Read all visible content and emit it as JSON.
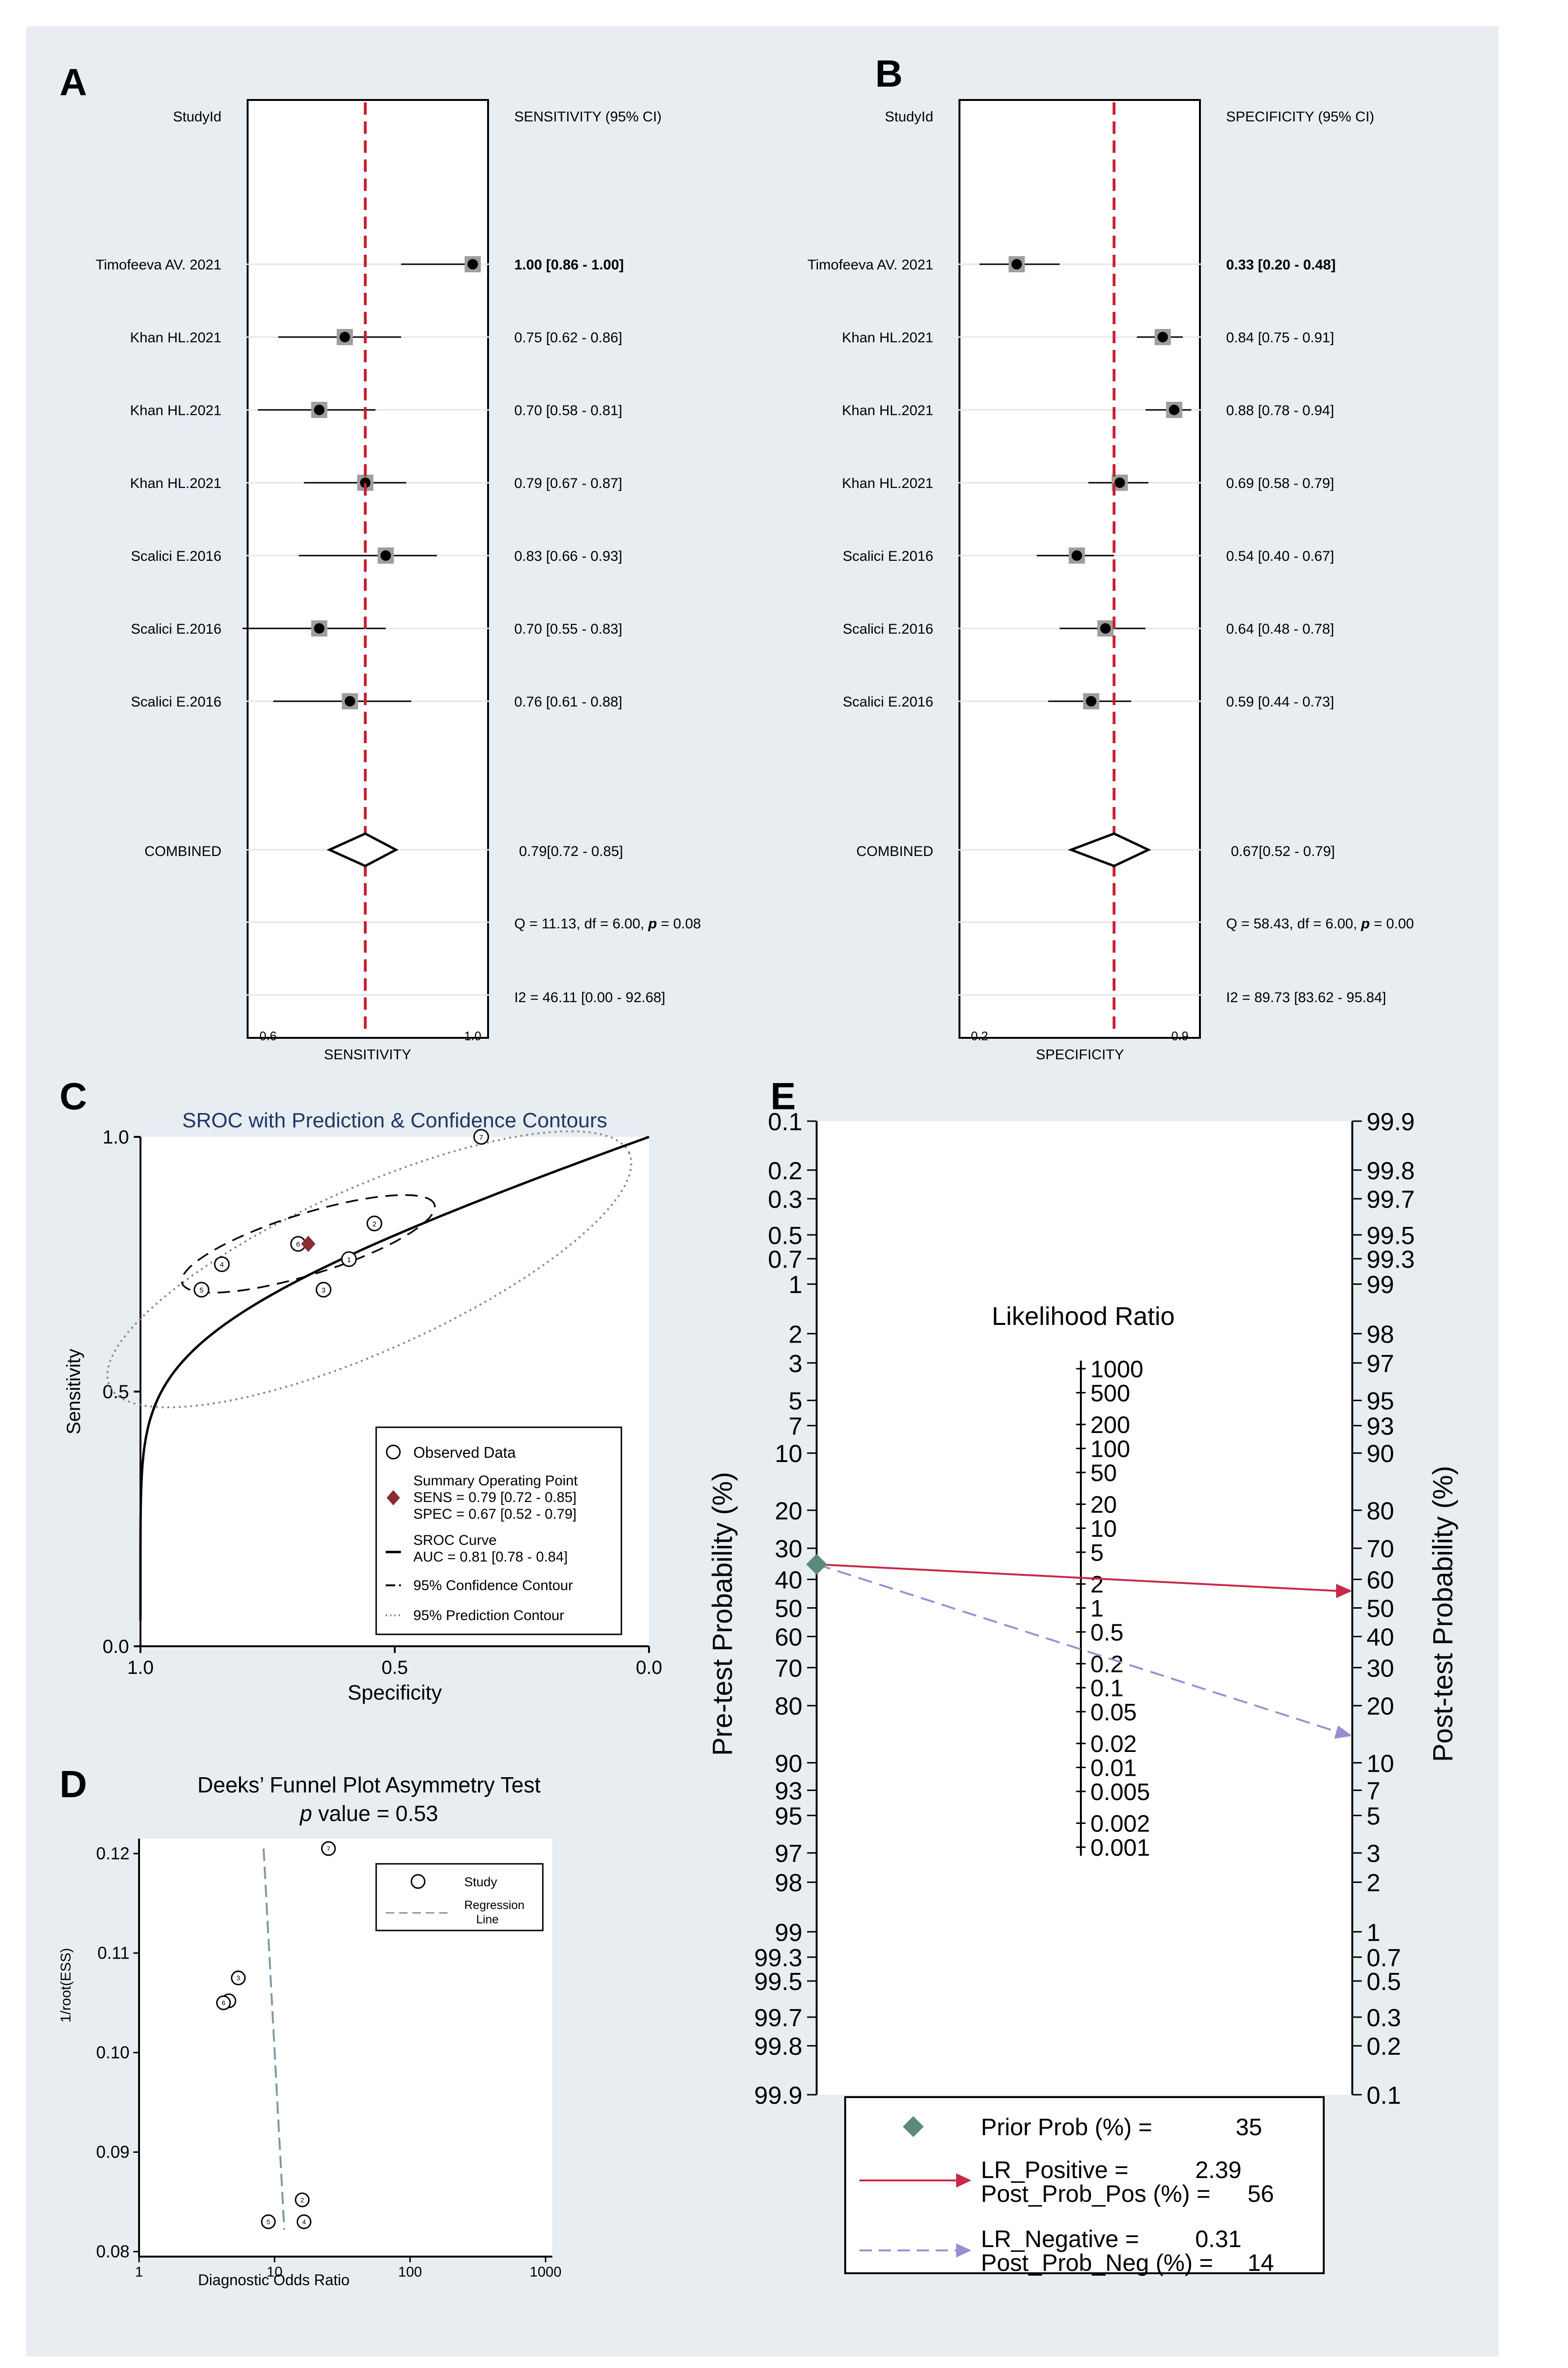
{
  "panel_labels": {
    "a": "A",
    "b": "B",
    "c": "C",
    "d": "D",
    "e": "E"
  },
  "colors": {
    "bg": "#e8edf2",
    "plot": "#ffffff",
    "refline": "#c8202f",
    "diamond": "#8b2c32",
    "pos": "#c8284a",
    "neg": "#9a8fd0",
    "prior": "#5a8a7a"
  },
  "chart_data": [
    {
      "id": "A",
      "type": "forest",
      "header_left": "StudyId",
      "header_right": "SENSITIVITY (95% CI)",
      "xlabel": "SENSITIVITY",
      "xlim": [
        0.56,
        1.03
      ],
      "ticks": [
        "0.6",
        "1.0"
      ],
      "ref": 0.79,
      "studies": [
        {
          "name": "Timofeeva AV. 2021",
          "est": 1.0,
          "lo": 0.86,
          "hi": 1.0,
          "ci": "1.00 [0.86 - 1.00]"
        },
        {
          "name": "Khan HL.2021",
          "est": 0.75,
          "lo": 0.62,
          "hi": 0.86,
          "ci": "0.75 [0.62 - 0.86]"
        },
        {
          "name": "Khan HL.2021",
          "est": 0.7,
          "lo": 0.58,
          "hi": 0.81,
          "ci": "0.70 [0.58 - 0.81]"
        },
        {
          "name": "Khan HL.2021",
          "est": 0.79,
          "lo": 0.67,
          "hi": 0.87,
          "ci": "0.79 [0.67 - 0.87]"
        },
        {
          "name": "Scalici E.2016",
          "est": 0.83,
          "lo": 0.66,
          "hi": 0.93,
          "ci": "0.83 [0.66 - 0.93]"
        },
        {
          "name": "Scalici E.2016",
          "est": 0.7,
          "lo": 0.55,
          "hi": 0.83,
          "ci": "0.70 [0.55 - 0.83]"
        },
        {
          "name": "Scalici E.2016",
          "est": 0.76,
          "lo": 0.61,
          "hi": 0.88,
          "ci": "0.76 [0.61 - 0.88]"
        }
      ],
      "combined": {
        "label": "COMBINED",
        "est": 0.79,
        "lo": 0.72,
        "hi": 0.85,
        "text": "0.79[0.72 - 0.85]"
      },
      "q_prefix": "Q = 11.13, df = 6.00, ",
      "q_p": "p",
      "q_suffix": " =  0.08",
      "i2": "I2 = 46.11 [0.00 - 92.68]"
    },
    {
      "id": "B",
      "type": "forest",
      "header_left": "StudyId",
      "header_right": "SPECIFICITY (95% CI)",
      "xlabel": "SPECIFICITY",
      "xlim": [
        0.13,
        0.97
      ],
      "ticks": [
        "0.2",
        "0.9"
      ],
      "ref": 0.67,
      "studies": [
        {
          "name": "Timofeeva AV. 2021",
          "est": 0.33,
          "lo": 0.2,
          "hi": 0.48,
          "ci": "0.33 [0.20 - 0.48]"
        },
        {
          "name": "Khan HL.2021",
          "est": 0.84,
          "lo": 0.75,
          "hi": 0.91,
          "ci": "0.84 [0.75 - 0.91]"
        },
        {
          "name": "Khan HL.2021",
          "est": 0.88,
          "lo": 0.78,
          "hi": 0.94,
          "ci": "0.88 [0.78 - 0.94]"
        },
        {
          "name": "Khan HL.2021",
          "est": 0.69,
          "lo": 0.58,
          "hi": 0.79,
          "ci": "0.69 [0.58 - 0.79]"
        },
        {
          "name": "Scalici E.2016",
          "est": 0.54,
          "lo": 0.4,
          "hi": 0.67,
          "ci": "0.54 [0.40 - 0.67]"
        },
        {
          "name": "Scalici E.2016",
          "est": 0.64,
          "lo": 0.48,
          "hi": 0.78,
          "ci": "0.64 [0.48 - 0.78]"
        },
        {
          "name": "Scalici E.2016",
          "est": 0.59,
          "lo": 0.44,
          "hi": 0.73,
          "ci": "0.59 [0.44 - 0.73]"
        }
      ],
      "combined": {
        "label": "COMBINED",
        "est": 0.67,
        "lo": 0.52,
        "hi": 0.79,
        "text": "0.67[0.52 - 0.79]"
      },
      "q_prefix": "Q = 58.43, df = 6.00, ",
      "q_p": "p",
      "q_suffix": " =  0.00",
      "i2": "I2 = 89.73 [83.62 - 95.84]"
    },
    {
      "id": "C",
      "type": "sroc",
      "title": "SROC with Prediction & Confidence Contours",
      "xlabel": "Specificity",
      "ylabel": "Sensitivity",
      "xticks": [
        "1.0",
        "0.5",
        "0.0"
      ],
      "yticks": [
        "0.0",
        "0.5",
        "1.0"
      ],
      "observed": [
        {
          "spec": 0.33,
          "sens": 1.0,
          "n": "7"
        },
        {
          "spec": 0.84,
          "sens": 0.75,
          "n": "4"
        },
        {
          "spec": 0.88,
          "sens": 0.7,
          "n": "5"
        },
        {
          "spec": 0.69,
          "sens": 0.79,
          "n": "6"
        },
        {
          "spec": 0.54,
          "sens": 0.83,
          "n": "2"
        },
        {
          "spec": 0.64,
          "sens": 0.7,
          "n": "3"
        },
        {
          "spec": 0.59,
          "sens": 0.76,
          "n": "1"
        }
      ],
      "summary": {
        "spec": 0.67,
        "sens": 0.79
      },
      "legend": {
        "observed": "Observed Data",
        "sop": "Summary Operating Point",
        "sens": "SENS = 0.79 [0.72 - 0.85]",
        "spec": "SPEC = 0.67 [0.52 - 0.79]",
        "sroc": "SROC Curve",
        "auc": "AUC = 0.81 [0.78 - 0.84]",
        "conf": "95% Confidence Contour",
        "pred": "95% Prediction Contour"
      }
    },
    {
      "id": "D",
      "type": "scatter",
      "title": "Deeks’ Funnel Plot Asymmetry Test",
      "subtitle_p": "p",
      "subtitle_rest": " value = 0.53",
      "xlabel": "Diagnostic Odds Ratio",
      "ylabel": "1/root(ESS)",
      "xticks": [
        "1",
        "10",
        "100",
        "1000"
      ],
      "yticks": [
        "0.08",
        "0.09",
        "0.10",
        "0.11",
        "0.12"
      ],
      "ylim": [
        0.0795,
        0.1215
      ],
      "points": [
        {
          "x": 25.0,
          "y": 0.1205,
          "n": "7"
        },
        {
          "x": 5.4,
          "y": 0.1075,
          "n": "3"
        },
        {
          "x": 4.6,
          "y": 0.1052,
          "n": "1"
        },
        {
          "x": 4.2,
          "y": 0.105,
          "n": "6"
        },
        {
          "x": 16.0,
          "y": 0.0852,
          "n": "2"
        },
        {
          "x": 16.5,
          "y": 0.083,
          "n": "4"
        },
        {
          "x": 9.0,
          "y": 0.083,
          "n": "5"
        }
      ],
      "regression": {
        "x1": 8.3,
        "y1": 0.1205,
        "x2": 11.8,
        "y2": 0.0822
      },
      "legend": {
        "study": "Study",
        "reg1": "Regression",
        "reg2": "Line"
      }
    },
    {
      "id": "E",
      "type": "fagan",
      "title": "Likelihood Ratio",
      "left_label": "Pre-test Probability (%)",
      "right_label": "Post-test Probability (%)",
      "left_ticks": [
        "0.1",
        "0.2",
        "0.3",
        "0.5",
        "0.7",
        "1",
        "2",
        "3",
        "5",
        "7",
        "10",
        "20",
        "30",
        "40",
        "50",
        "60",
        "70",
        "80",
        "90",
        "93",
        "95",
        "97",
        "98",
        "99",
        "99.3",
        "99.5",
        "99.7",
        "99.8",
        "99.9"
      ],
      "right_ticks": [
        "99.9",
        "99.8",
        "99.7",
        "99.5",
        "99.3",
        "99",
        "98",
        "97",
        "95",
        "93",
        "90",
        "80",
        "70",
        "60",
        "50",
        "40",
        "30",
        "20",
        "10",
        "7",
        "5",
        "3",
        "2",
        "1",
        "0.7",
        "0.5",
        "0.3",
        "0.2",
        "0.1"
      ],
      "lr_ticks": [
        "1000",
        "500",
        "200",
        "100",
        "50",
        "20",
        "10",
        "5",
        "2",
        "1",
        "0.5",
        "0.2",
        "0.1",
        "0.05",
        "0.02",
        "0.01",
        "0.005",
        "0.002",
        "0.001"
      ],
      "prior": 35,
      "lr_pos": 2.39,
      "post_pos": 56,
      "lr_neg": 0.31,
      "post_neg": 14,
      "legend": {
        "prior": "Prior Prob (%) =",
        "prior_val": "35",
        "lrp": "LR_Positive =",
        "lrp_val": "2.39",
        "ppp": "Post_Prob_Pos (%) =",
        "ppp_val": "56",
        "lrn": "LR_Negative =",
        "lrn_val": "0.31",
        "ppn": "Post_Prob_Neg (%) =",
        "ppn_val": "14"
      }
    }
  ]
}
